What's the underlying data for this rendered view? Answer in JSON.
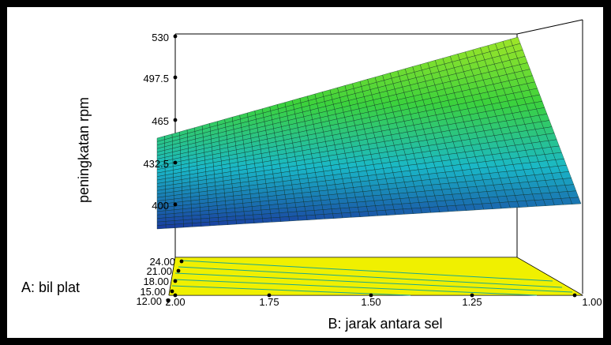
{
  "chart_data": {
    "type": "surface3d",
    "zlabel": "peningkatan rpm",
    "xlabel": "B: jarak antara sel",
    "ylabel": "A: bil plat",
    "z_ticks": [
      "400",
      "432.5",
      "465",
      "497.5",
      "530"
    ],
    "z_tick_values": [
      400,
      432.5,
      465,
      497.5,
      530
    ],
    "zlim": [
      400,
      530
    ],
    "x_ticks": [
      "2.00",
      "1.75",
      "1.50",
      "1.25",
      "1.00"
    ],
    "x_tick_values": [
      2.0,
      1.75,
      1.5,
      1.25,
      1.0
    ],
    "xlim": [
      1.0,
      2.0
    ],
    "y_ticks": [
      "12.00",
      "15.00",
      "18.00",
      "21.00",
      "24.00"
    ],
    "y_tick_values": [
      12,
      15,
      18,
      21,
      24
    ],
    "ylim": [
      12,
      24
    ],
    "surface_corners": [
      {
        "B": 2.0,
        "A": 24,
        "z": 456
      },
      {
        "B": 1.0,
        "A": 24,
        "z": 524
      },
      {
        "B": 2.0,
        "A": 12,
        "z": 388
      },
      {
        "B": 1.0,
        "A": 12,
        "z": 408
      }
    ],
    "colormap": [
      "#1a3a9e",
      "#1ab8c8",
      "#3cd23c",
      "#a0e628"
    ],
    "contour_color": "#f0f000"
  }
}
